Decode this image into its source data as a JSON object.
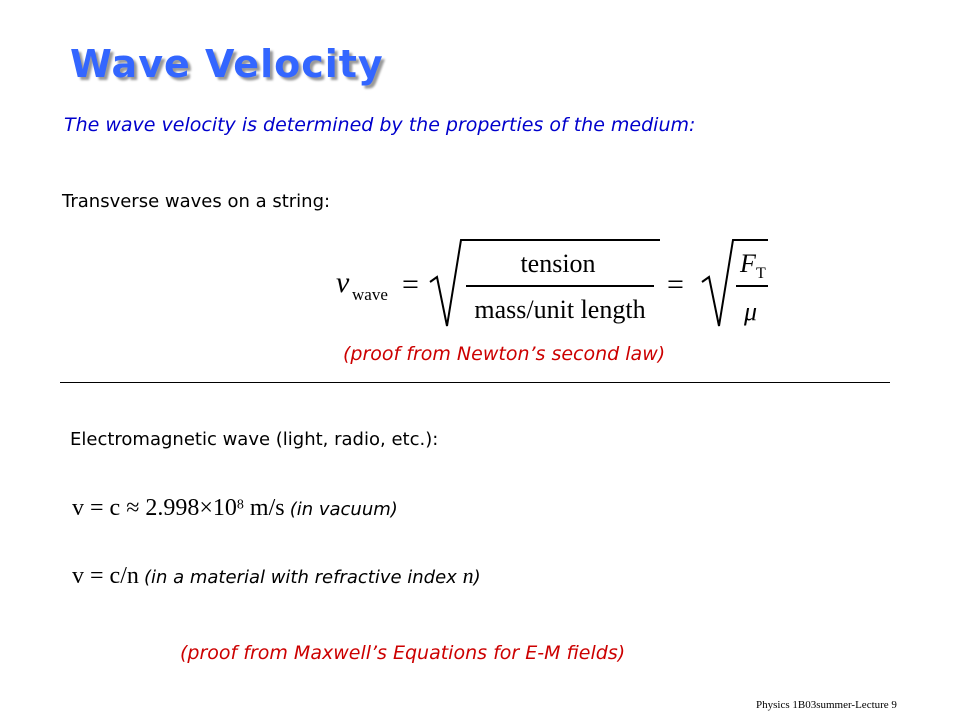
{
  "title": "Wave Velocity",
  "subtitle": "The wave velocity is determined by the properties of the medium:",
  "string_section": {
    "heading": "Transverse waves on a string:",
    "equation": {
      "symbol": "v",
      "subscript": "wave",
      "equals": "=",
      "numerator": "tension",
      "denominator": "mass/unit length",
      "force": "F",
      "force_subscript": "T",
      "mu": "μ"
    },
    "note": "(proof from Newton’s second law)"
  },
  "em_section": {
    "heading": "Electromagnetic wave (light, radio, etc.):",
    "eq1": {
      "formula": "v = c ≈ 2.998×10",
      "exponent": "8",
      "unit": " m/s",
      "note": "(in vacuum)"
    },
    "eq2": {
      "formula": "v = c/n",
      "note": "(in a material with refractive index ",
      "symbol": "n",
      "note_end": ")"
    },
    "note": "(proof from Maxwell’s Equations for E-M fields)"
  },
  "footer": "Physics 1B03summer-Lecture 9"
}
